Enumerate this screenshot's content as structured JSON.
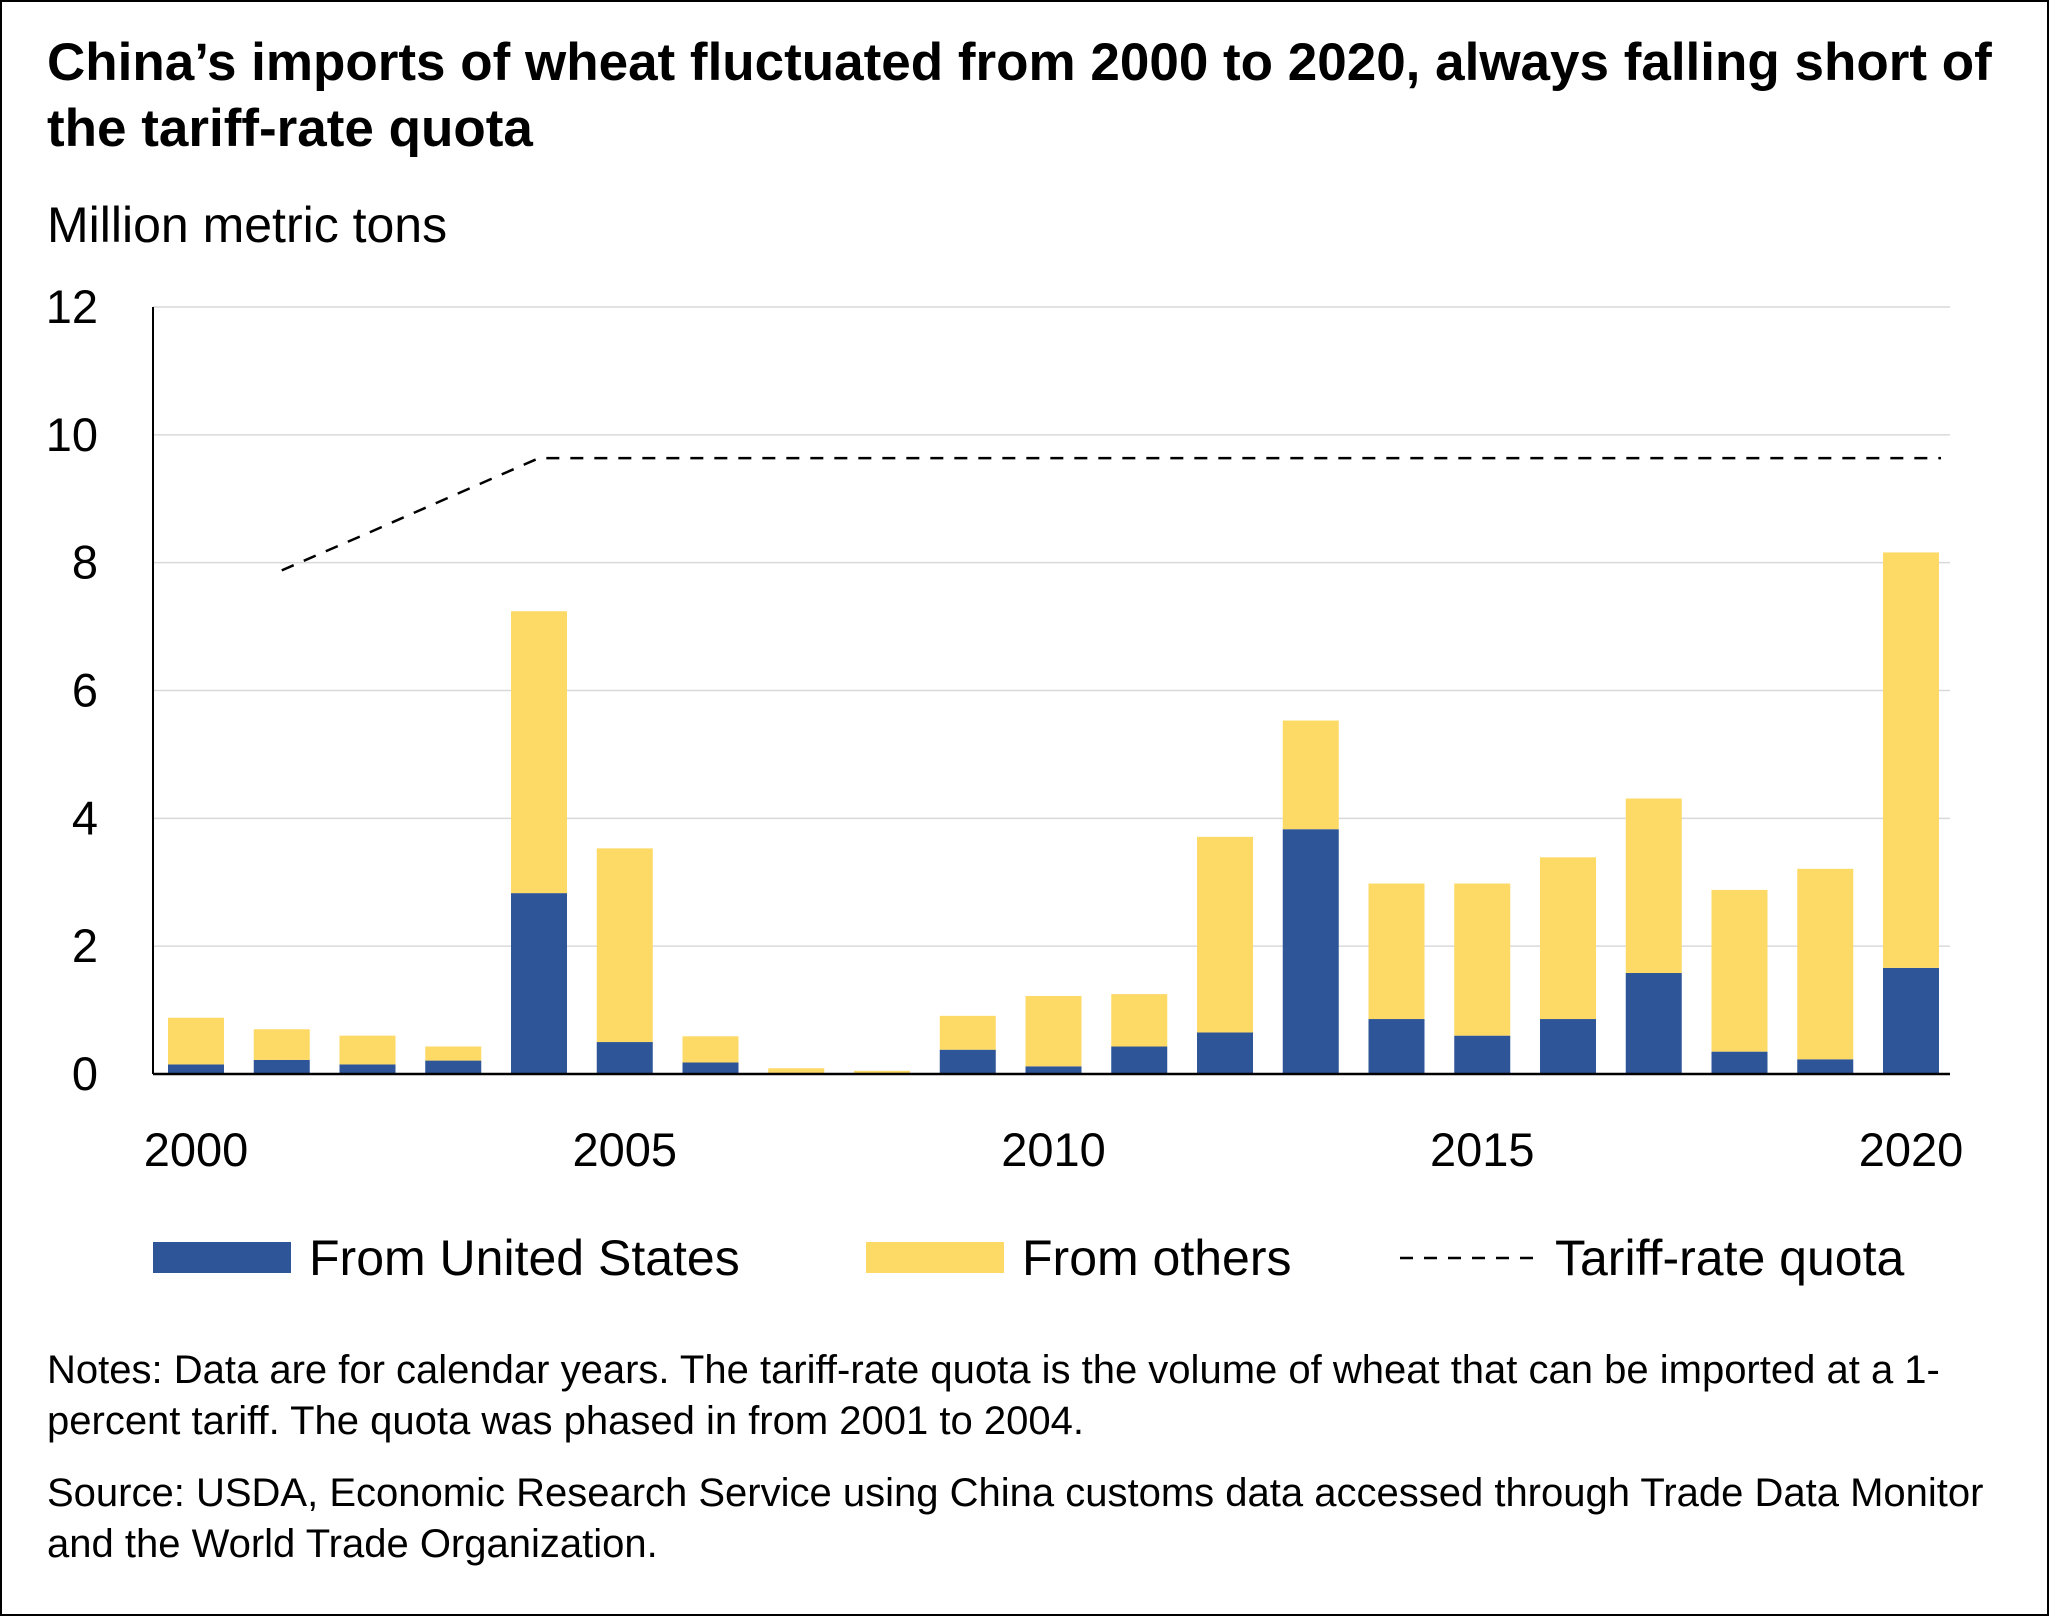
{
  "title": "China’s imports of wheat fluctuated from 2000 to 2020, always falling short of the tariff-rate quota",
  "y_unit_label": "Million metric tons",
  "notes": "Notes: Data are for calendar years. The tariff-rate quota is the volume of wheat that can be imported at a 1-percent tariff. The quota was phased in from 2001 to 2004.",
  "source": "Source: USDA, Economic Research Service using China customs data accessed through Trade Data Monitor and the World Trade Organization.",
  "colors": {
    "us": "#2e5597",
    "others": "#fdd966",
    "grid": "#d9d9d9",
    "axis": "#000000",
    "quota": "#000000"
  },
  "chart_data": {
    "type": "bar",
    "stacked": true,
    "categories": [
      "2000",
      "2001",
      "2002",
      "2003",
      "2004",
      "2005",
      "2006",
      "2007",
      "2008",
      "2009",
      "2010",
      "2011",
      "2012",
      "2013",
      "2014",
      "2015",
      "2016",
      "2017",
      "2018",
      "2019",
      "2020"
    ],
    "series": [
      {
        "name": "From United States",
        "color": "#2e5597",
        "values": [
          0.15,
          0.22,
          0.15,
          0.21,
          2.83,
          0.5,
          0.18,
          0.0,
          0.0,
          0.38,
          0.12,
          0.43,
          0.65,
          3.83,
          0.86,
          0.6,
          0.86,
          1.58,
          0.35,
          0.23,
          1.66
        ]
      },
      {
        "name": "From others",
        "color": "#fdd966",
        "values": [
          0.73,
          0.48,
          0.45,
          0.22,
          4.41,
          3.03,
          0.41,
          0.09,
          0.05,
          0.53,
          1.1,
          0.82,
          3.06,
          1.7,
          2.12,
          2.38,
          2.53,
          2.73,
          2.53,
          2.98,
          6.5
        ]
      }
    ],
    "line_series": {
      "name": "Tariff-rate quota",
      "style": "dashed",
      "x": [
        "2001",
        "2002",
        "2003",
        "2004",
        "2005",
        "2006",
        "2007",
        "2008",
        "2009",
        "2010",
        "2011",
        "2012",
        "2013",
        "2014",
        "2015",
        "2016",
        "2017",
        "2018",
        "2019",
        "2020"
      ],
      "values": [
        7.88,
        8.46,
        9.05,
        9.636,
        9.636,
        9.636,
        9.636,
        9.636,
        9.636,
        9.636,
        9.636,
        9.636,
        9.636,
        9.636,
        9.636,
        9.636,
        9.636,
        9.636,
        9.636,
        9.636
      ]
    },
    "x_tick_labels": [
      "2000",
      "2005",
      "2010",
      "2015",
      "2020"
    ],
    "y_ticks": [
      0,
      2,
      4,
      6,
      8,
      10,
      12
    ],
    "ylim": [
      0,
      12
    ],
    "ylabel": "Million metric tons",
    "grid": true,
    "legend_position": "bottom"
  }
}
